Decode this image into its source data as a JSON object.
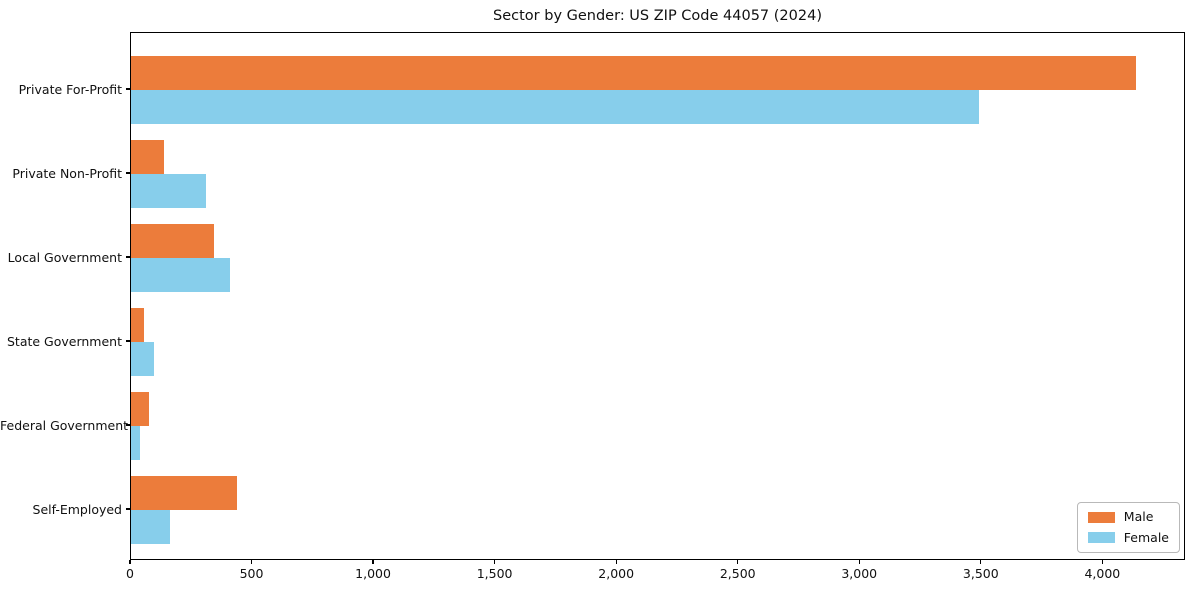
{
  "chart_data": {
    "type": "bar",
    "orientation": "horizontal",
    "title": "Sector by Gender: US ZIP Code 44057 (2024)",
    "categories": [
      "Private For-Profit",
      "Private Non-Profit",
      "Local Government",
      "State Government",
      "Federal Government",
      "Self-Employed"
    ],
    "series": [
      {
        "name": "Male",
        "color": "#EC7C3B",
        "values": [
          4135,
          135,
          340,
          55,
          75,
          435
        ]
      },
      {
        "name": "Female",
        "color": "#87CEEB",
        "values": [
          3490,
          310,
          405,
          95,
          35,
          160
        ]
      }
    ],
    "xlabel": "",
    "ylabel": "",
    "xlim": [
      0,
      4340
    ],
    "xticks": [
      0,
      500,
      1000,
      1500,
      2000,
      2500,
      3000,
      3500,
      4000
    ],
    "xtick_labels": [
      "0",
      "500",
      "1,000",
      "1,500",
      "2,000",
      "2,500",
      "3,000",
      "3,500",
      "4,000"
    ],
    "grid": false,
    "legend": {
      "position": "lower right",
      "entries": [
        "Male",
        "Female"
      ]
    },
    "frame_color": "#000000",
    "background_color": "#ffffff",
    "text_color": "#111111"
  }
}
